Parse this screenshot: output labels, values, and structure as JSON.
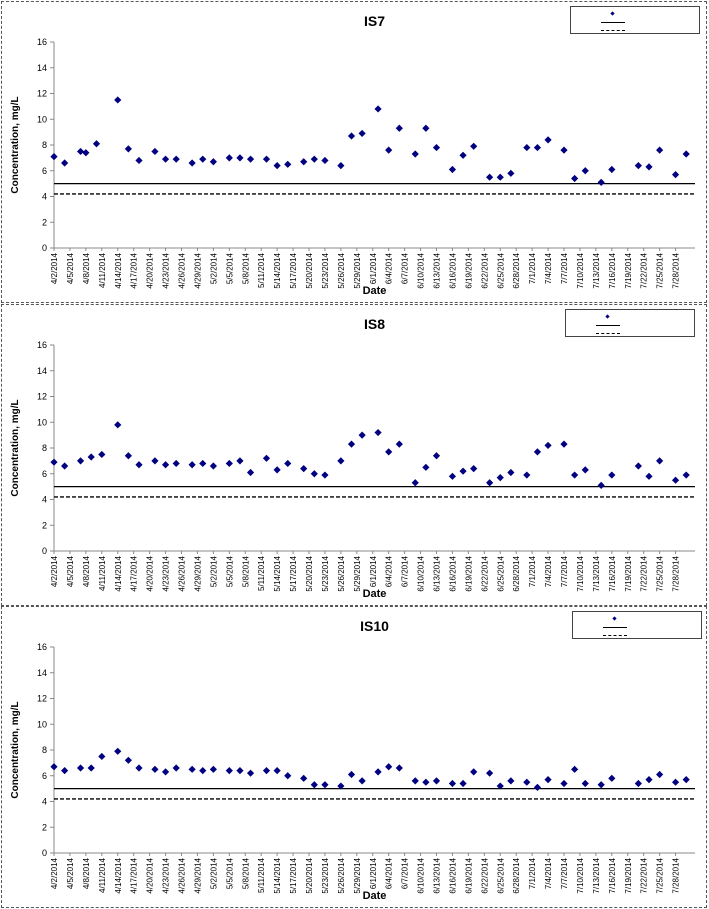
{
  "chart_data": [
    {
      "type": "scatter",
      "title": "IS7",
      "xlabel": "Date",
      "ylabel": "Concentration, mg/L",
      "ylim": [
        0,
        16
      ],
      "yticks": [
        0,
        2,
        4,
        6,
        8,
        10,
        12,
        14,
        16
      ],
      "xticks": [
        "4/2/2014",
        "4/5/2014",
        "4/8/2014",
        "4/11/2014",
        "4/14/2014",
        "4/17/2014",
        "4/20/2014",
        "4/23/2014",
        "4/26/2014",
        "4/29/2014",
        "5/2/2014",
        "5/5/2014",
        "5/8/2014",
        "5/11/2014",
        "5/14/2014",
        "5/17/2014",
        "5/20/2014",
        "5/23/2014",
        "5/26/2014",
        "5/29/2014",
        "6/1/2014",
        "6/4/2014",
        "6/7/2014",
        "6/10/2014",
        "6/13/2014",
        "6/16/2014",
        "6/19/2014",
        "6/22/2014",
        "6/25/2014",
        "6/28/2014",
        "7/1/2014",
        "7/4/2014",
        "7/7/2014",
        "7/10/2014",
        "7/13/2014",
        "7/16/2014",
        "7/19/2014",
        "7/22/2014",
        "7/25/2014",
        "7/28/2014"
      ],
      "legend": {
        "position": "top-right"
      },
      "points": [
        [
          0,
          7.1
        ],
        [
          1,
          6.6
        ],
        [
          2.5,
          7.5
        ],
        [
          3,
          7.4
        ],
        [
          4,
          8.1
        ],
        [
          6,
          11.5
        ],
        [
          7,
          7.7
        ],
        [
          8,
          6.8
        ],
        [
          9.5,
          7.5
        ],
        [
          10.5,
          6.9
        ],
        [
          11.5,
          6.9
        ],
        [
          13,
          6.6
        ],
        [
          14,
          6.9
        ],
        [
          15,
          6.7
        ],
        [
          16.5,
          7.0
        ],
        [
          17.5,
          7.0
        ],
        [
          18.5,
          6.9
        ],
        [
          20,
          6.9
        ],
        [
          21,
          6.4
        ],
        [
          22,
          6.5
        ],
        [
          23.5,
          6.7
        ],
        [
          24.5,
          6.9
        ],
        [
          25.5,
          6.8
        ],
        [
          27,
          6.4
        ],
        [
          28,
          8.7
        ],
        [
          29,
          8.9
        ],
        [
          30.5,
          10.8
        ],
        [
          31.5,
          7.6
        ],
        [
          32.5,
          9.3
        ],
        [
          34,
          7.3
        ],
        [
          35,
          9.3
        ],
        [
          36,
          7.8
        ],
        [
          37.5,
          6.1
        ],
        [
          38.5,
          7.2
        ],
        [
          39.5,
          7.9
        ],
        [
          41,
          5.5
        ],
        [
          42,
          5.5
        ],
        [
          43,
          5.8
        ],
        [
          44.5,
          7.8
        ],
        [
          45.5,
          7.8
        ],
        [
          46.5,
          8.4
        ],
        [
          48,
          7.6
        ],
        [
          49,
          5.4
        ],
        [
          50,
          6.0
        ],
        [
          51.5,
          5.1
        ],
        [
          52.5,
          6.1
        ],
        [
          55,
          6.4
        ],
        [
          56,
          6.3
        ],
        [
          57,
          7.6
        ],
        [
          58.5,
          5.7
        ],
        [
          59.5,
          7.3
        ]
      ],
      "reference_lines": [
        {
          "style": "solid",
          "value": 5.0
        },
        {
          "style": "dashed",
          "value": 4.2
        }
      ]
    },
    {
      "type": "scatter",
      "title": "IS8",
      "xlabel": "Date",
      "ylabel": "Concentration, mg/L",
      "ylim": [
        0,
        16
      ],
      "yticks": [
        0,
        2,
        4,
        6,
        8,
        10,
        12,
        14,
        16
      ],
      "xticks": [
        "4/2/2014",
        "4/5/2014",
        "4/8/2014",
        "4/11/2014",
        "4/14/2014",
        "4/17/2014",
        "4/20/2014",
        "4/23/2014",
        "4/26/2014",
        "4/29/2014",
        "5/2/2014",
        "5/5/2014",
        "5/8/2014",
        "5/11/2014",
        "5/14/2014",
        "5/17/2014",
        "5/20/2014",
        "5/23/2014",
        "5/26/2014",
        "5/29/2014",
        "6/1/2014",
        "6/4/2014",
        "6/7/2014",
        "6/10/2014",
        "6/13/2014",
        "6/16/2014",
        "6/19/2014",
        "6/22/2014",
        "6/25/2014",
        "6/28/2014",
        "7/1/2014",
        "7/4/2014",
        "7/7/2014",
        "7/10/2014",
        "7/13/2014",
        "7/16/2014",
        "7/19/2014",
        "7/22/2014",
        "7/25/2014",
        "7/28/2014"
      ],
      "legend": {
        "position": "top-right"
      },
      "points": [
        [
          0,
          6.9
        ],
        [
          1,
          6.6
        ],
        [
          2.5,
          7.0
        ],
        [
          3.5,
          7.3
        ],
        [
          4.5,
          7.5
        ],
        [
          6,
          9.8
        ],
        [
          7,
          7.4
        ],
        [
          8,
          6.7
        ],
        [
          9.5,
          7.0
        ],
        [
          10.5,
          6.7
        ],
        [
          11.5,
          6.8
        ],
        [
          13,
          6.7
        ],
        [
          14,
          6.8
        ],
        [
          15,
          6.6
        ],
        [
          16.5,
          6.8
        ],
        [
          17.5,
          7.0
        ],
        [
          18.5,
          6.1
        ],
        [
          20,
          7.2
        ],
        [
          21,
          6.3
        ],
        [
          22,
          6.8
        ],
        [
          23.5,
          6.4
        ],
        [
          24.5,
          6.0
        ],
        [
          25.5,
          5.9
        ],
        [
          27,
          7.0
        ],
        [
          28,
          8.3
        ],
        [
          29,
          9.0
        ],
        [
          30.5,
          9.2
        ],
        [
          31.5,
          7.7
        ],
        [
          32.5,
          8.3
        ],
        [
          34,
          5.3
        ],
        [
          35,
          6.5
        ],
        [
          36,
          7.4
        ],
        [
          37.5,
          5.8
        ],
        [
          38.5,
          6.2
        ],
        [
          39.5,
          6.4
        ],
        [
          41,
          5.3
        ],
        [
          42,
          5.7
        ],
        [
          43,
          6.1
        ],
        [
          44.5,
          5.9
        ],
        [
          45.5,
          7.7
        ],
        [
          46.5,
          8.2
        ],
        [
          48,
          8.3
        ],
        [
          49,
          5.9
        ],
        [
          50,
          6.3
        ],
        [
          51.5,
          5.1
        ],
        [
          52.5,
          5.9
        ],
        [
          55,
          6.6
        ],
        [
          56,
          5.8
        ],
        [
          57,
          7.0
        ],
        [
          58.5,
          5.5
        ],
        [
          59.5,
          5.9
        ]
      ],
      "reference_lines": [
        {
          "style": "solid",
          "value": 5.0
        },
        {
          "style": "dashed",
          "value": 4.2
        }
      ]
    },
    {
      "type": "scatter",
      "title": "IS10",
      "xlabel": "Date",
      "ylabel": "Concentration, mg/L",
      "ylim": [
        0,
        16
      ],
      "yticks": [
        0,
        2,
        4,
        6,
        8,
        10,
        12,
        14,
        16
      ],
      "xticks": [
        "4/2/2014",
        "4/5/2014",
        "4/8/2014",
        "4/11/2014",
        "4/14/2014",
        "4/17/2014",
        "4/20/2014",
        "4/23/2014",
        "4/26/2014",
        "4/29/2014",
        "5/2/2014",
        "5/5/2014",
        "5/8/2014",
        "5/11/2014",
        "5/14/2014",
        "5/17/2014",
        "5/20/2014",
        "5/23/2014",
        "5/26/2014",
        "5/29/2014",
        "6/1/2014",
        "6/4/2014",
        "6/7/2014",
        "6/10/2014",
        "6/13/2014",
        "6/16/2014",
        "6/19/2014",
        "6/22/2014",
        "6/25/2014",
        "6/28/2014",
        "7/1/2014",
        "7/4/2014",
        "7/7/2014",
        "7/10/2014",
        "7/13/2014",
        "7/16/2014",
        "7/19/2014",
        "7/22/2014",
        "7/25/2014",
        "7/28/2014"
      ],
      "legend": {
        "position": "top-right"
      },
      "points": [
        [
          0,
          6.7
        ],
        [
          1,
          6.4
        ],
        [
          2.5,
          6.6
        ],
        [
          3.5,
          6.6
        ],
        [
          4.5,
          7.5
        ],
        [
          6,
          7.9
        ],
        [
          7,
          7.2
        ],
        [
          8,
          6.6
        ],
        [
          9.5,
          6.5
        ],
        [
          10.5,
          6.3
        ],
        [
          11.5,
          6.6
        ],
        [
          13,
          6.5
        ],
        [
          14,
          6.4
        ],
        [
          15,
          6.5
        ],
        [
          16.5,
          6.4
        ],
        [
          17.5,
          6.4
        ],
        [
          18.5,
          6.2
        ],
        [
          20,
          6.4
        ],
        [
          21,
          6.4
        ],
        [
          22,
          6.0
        ],
        [
          23.5,
          5.8
        ],
        [
          24.5,
          5.3
        ],
        [
          25.5,
          5.3
        ],
        [
          27,
          5.2
        ],
        [
          28,
          6.1
        ],
        [
          29,
          5.6
        ],
        [
          30.5,
          6.3
        ],
        [
          31.5,
          6.7
        ],
        [
          32.5,
          6.6
        ],
        [
          34,
          5.6
        ],
        [
          35,
          5.5
        ],
        [
          36,
          5.6
        ],
        [
          37.5,
          5.4
        ],
        [
          38.5,
          5.4
        ],
        [
          39.5,
          6.3
        ],
        [
          41,
          6.2
        ],
        [
          42,
          5.2
        ],
        [
          43,
          5.6
        ],
        [
          44.5,
          5.5
        ],
        [
          45.5,
          5.1
        ],
        [
          46.5,
          5.7
        ],
        [
          48,
          5.4
        ],
        [
          49,
          6.5
        ],
        [
          50,
          5.4
        ],
        [
          51.5,
          5.3
        ],
        [
          52.5,
          5.8
        ],
        [
          55,
          5.4
        ],
        [
          56,
          5.7
        ],
        [
          57,
          6.1
        ],
        [
          58.5,
          5.5
        ],
        [
          59.5,
          5.7
        ]
      ],
      "reference_lines": [
        {
          "style": "solid",
          "value": 5.0
        },
        {
          "style": "dashed",
          "value": 4.2
        }
      ]
    }
  ],
  "colors": {
    "marker": "#000080",
    "axis": "#888888",
    "reference_line": "#000000",
    "text": "#000000"
  }
}
